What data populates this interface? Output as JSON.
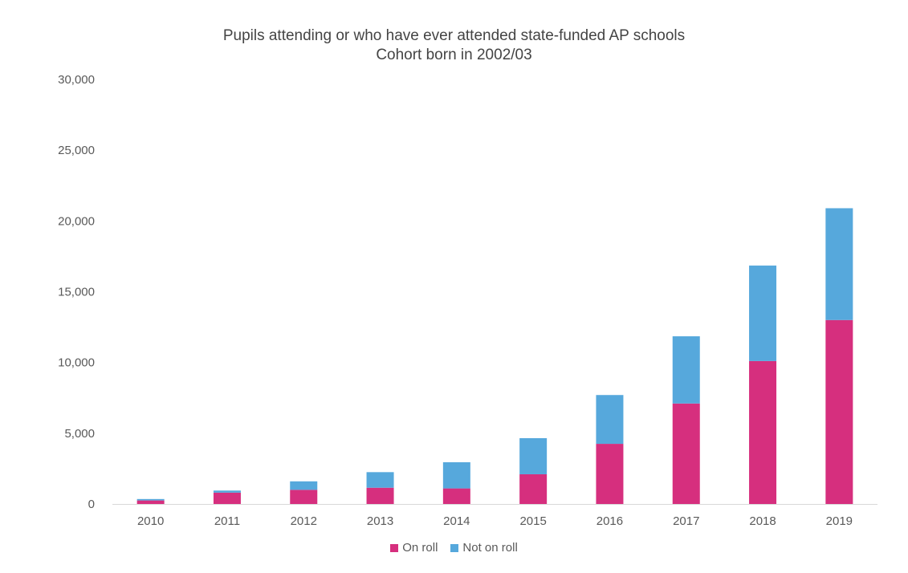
{
  "chart_data": {
    "type": "bar",
    "stacked": true,
    "title": "Pupils attending or who have ever attended state-funded AP schools",
    "subtitle": "Cohort born in 2002/03",
    "xlabel": "",
    "ylabel": "",
    "categories": [
      "2010",
      "2011",
      "2012",
      "2013",
      "2014",
      "2015",
      "2016",
      "2017",
      "2018",
      "2019"
    ],
    "ylim": [
      0,
      30000
    ],
    "yticks": [
      0,
      5000,
      10000,
      15000,
      20000,
      25000,
      30000
    ],
    "ytick_labels": [
      "0",
      "5,000",
      "10,000",
      "15,000",
      "20,000",
      "25,000",
      "30,000"
    ],
    "grid": false,
    "legend_position": "bottom",
    "series": [
      {
        "name": "On roll",
        "color": "#d62f7e",
        "values": [
          250,
          800,
          1000,
          1150,
          1100,
          2100,
          4250,
          7100,
          10100,
          13000
        ]
      },
      {
        "name": "Not on roll",
        "color": "#56a8dc",
        "values": [
          100,
          150,
          600,
          1100,
          1850,
          2550,
          3450,
          4750,
          6750,
          7900
        ]
      }
    ]
  }
}
